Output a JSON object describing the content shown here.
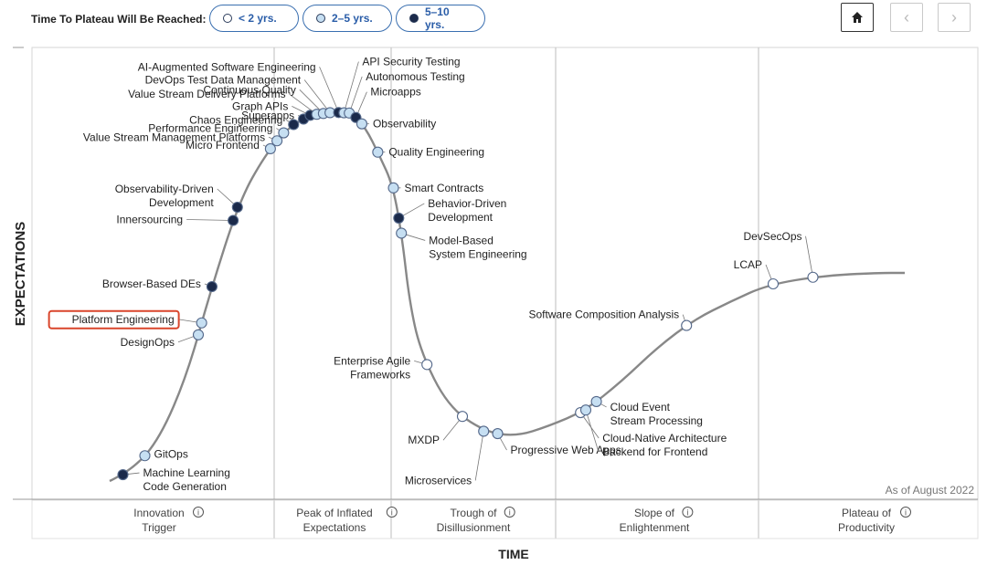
{
  "toolbar": {
    "legend_label": "Time To Plateau Will Be Reached:",
    "pills": [
      {
        "label": "< 2 yrs.",
        "fill": "#ffffff"
      },
      {
        "label": "2–5 yrs.",
        "fill": "#c6dff2"
      },
      {
        "label": "5–10 yrs.",
        "fill": "#1b2a4a"
      }
    ],
    "nav": {
      "home_icon": "home-icon",
      "prev_icon": "chevron-left-icon",
      "next_icon": "chevron-right-icon"
    }
  },
  "chart_data": {
    "type": "scatter",
    "ylabel": "EXPECTATIONS",
    "xlabel": "TIME",
    "note": "As of August 2022",
    "phases": [
      [
        "Innovation",
        "Trigger"
      ],
      [
        "Peak of Inflated",
        "Expectations"
      ],
      [
        "Trough of",
        "Disillusionment"
      ],
      [
        "Slope of",
        "Enlightenment"
      ],
      [
        "Plateau of",
        "Productivity"
      ]
    ],
    "categories_legend": {
      "lt2": "< 2 yrs.",
      "2to5": "2–5 yrs.",
      "5to10": "5–10 yrs."
    },
    "colors": {
      "lt2": "#ffffff",
      "2to5": "#c6dff2",
      "5to10": "#1b2a4a",
      "curve": "#888888",
      "highlight": "#d9452b"
    },
    "technologies": [
      {
        "label": [
          "Machine Learning",
          "Code Generation"
        ],
        "t": 0.02,
        "cat": "5to10"
      },
      {
        "label": [
          "GitOps"
        ],
        "t": 0.05,
        "cat": "2to5"
      },
      {
        "label": [
          "DesignOps"
        ],
        "t": 0.12,
        "cat": "2to5"
      },
      {
        "label": [
          "Platform Engineering"
        ],
        "t": 0.125,
        "cat": "2to5",
        "highlight": true
      },
      {
        "label": [
          "Browser-Based DEs"
        ],
        "t": 0.14,
        "cat": "5to10"
      },
      {
        "label": [
          "Innersourcing"
        ],
        "t": 0.165,
        "cat": "5to10"
      },
      {
        "label": [
          "Observability-Driven",
          "Development"
        ],
        "t": 0.17,
        "cat": "5to10"
      },
      {
        "label": [
          "Micro Frontend"
        ],
        "t": 0.215,
        "cat": "2to5"
      },
      {
        "label": [
          "Value Stream Management Platforms"
        ],
        "t": 0.225,
        "cat": "2to5"
      },
      {
        "label": [
          "Performance Engineering"
        ],
        "t": 0.235,
        "cat": "2to5"
      },
      {
        "label": [
          "Chaos Engineering"
        ],
        "t": 0.25,
        "cat": "5to10"
      },
      {
        "label": [
          "Superapps"
        ],
        "t": 0.265,
        "cat": "5to10"
      },
      {
        "label": [
          "Graph APIs"
        ],
        "t": 0.275,
        "cat": "5to10"
      },
      {
        "label": [
          "Value Stream Delivery Platforms"
        ],
        "t": 0.285,
        "cat": "2to5"
      },
      {
        "label": [
          "Continuous Quality"
        ],
        "t": 0.295,
        "cat": "2to5"
      },
      {
        "label": [
          "DevOps Test Data Management"
        ],
        "t": 0.305,
        "cat": "2to5"
      },
      {
        "label": [
          "AI-Augmented Software Engineering"
        ],
        "t": 0.32,
        "cat": "5to10"
      },
      {
        "label": [
          "API Security Testing"
        ],
        "t": 0.33,
        "cat": "2to5"
      },
      {
        "label": [
          "Autonomous Testing"
        ],
        "t": 0.34,
        "cat": "2to5"
      },
      {
        "label": [
          "Microapps"
        ],
        "t": 0.355,
        "cat": "5to10"
      },
      {
        "label": [
          "Observability"
        ],
        "t": 0.37,
        "cat": "2to5"
      },
      {
        "label": [
          "Quality Engineering"
        ],
        "t": 0.41,
        "cat": "2to5"
      },
      {
        "label": [
          "Smart Contracts"
        ],
        "t": 0.45,
        "cat": "2to5"
      },
      {
        "label": [
          "Behavior-Driven",
          "Development"
        ],
        "t": 0.47,
        "cat": "5to10"
      },
      {
        "label": [
          "Model-Based",
          "System Engineering"
        ],
        "t": 0.48,
        "cat": "2to5"
      },
      {
        "label": [
          "Enterprise Agile",
          "Frameworks"
        ],
        "t": 0.56,
        "cat": "lt2"
      },
      {
        "label": [
          "MXDP"
        ],
        "t": 0.6,
        "cat": "lt2"
      },
      {
        "label": [
          "Microservices"
        ],
        "t": 0.62,
        "cat": "2to5"
      },
      {
        "label": [
          "Progressive Web Apps"
        ],
        "t": 0.635,
        "cat": "2to5"
      },
      {
        "label": [
          "Cloud-Native Architecture"
        ],
        "t": 0.72,
        "cat": "lt2"
      },
      {
        "label": [
          "Backend for Frontend"
        ],
        "t": 0.725,
        "cat": "2to5"
      },
      {
        "label": [
          "Cloud Event",
          "Stream Processing"
        ],
        "t": 0.735,
        "cat": "2to5"
      },
      {
        "label": [
          "Software Composition Analysis"
        ],
        "t": 0.82,
        "cat": "lt2"
      },
      {
        "label": [
          "LCAP"
        ],
        "t": 0.9,
        "cat": "lt2"
      },
      {
        "label": [
          "DevSecOps"
        ],
        "t": 0.925,
        "cat": "lt2"
      }
    ]
  }
}
